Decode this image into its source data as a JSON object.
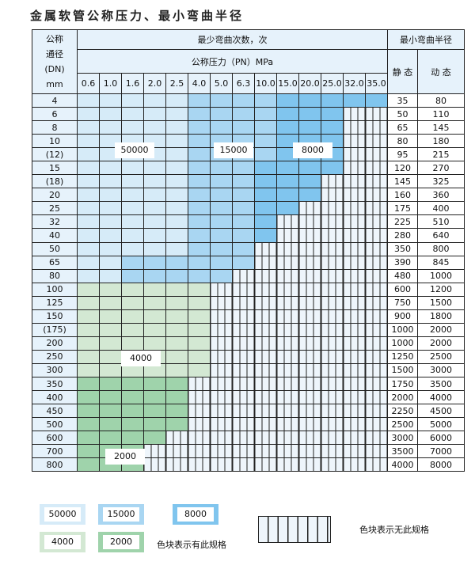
{
  "title": "金属软管公称压力、最小弯曲半径",
  "header": {
    "dn_label": [
      "公称",
      "通径",
      "(DN)",
      "mm"
    ],
    "cycles_label": "最少弯曲次数，次",
    "pressure_label": "公称压力（PN）MPa",
    "radius_label": "最小弯曲半径",
    "static_label": "静 态",
    "dynamic_label": "动 态"
  },
  "pressures": [
    "0.6",
    "1.0",
    "1.6",
    "2.0",
    "2.5",
    "4.0",
    "5.0",
    "6.3",
    "10.0",
    "15.0",
    "20.0",
    "25.0",
    "32.0",
    "35.0"
  ],
  "colors": {
    "A": "#d6ebf8",
    "B": "#a9d6f2",
    "C": "#80c5ee",
    "D": "#d3e8d3",
    "E": "#9fd3ab",
    "N": "#eef5fb"
  },
  "rows": [
    {
      "dn": "4",
      "s": "35",
      "d": "80",
      "cells": "AAAAABBBBCCCCC"
    },
    {
      "dn": "6",
      "s": "50",
      "d": "110",
      "cells": "AAAAABBBBCCCNN"
    },
    {
      "dn": "8",
      "s": "65",
      "d": "145",
      "cells": "AAAAABBBBCCCNN"
    },
    {
      "dn": "10",
      "s": "80",
      "d": "180",
      "cells": "AAAAABBBBCCCNN"
    },
    {
      "dn": "(12)",
      "s": "95",
      "d": "215",
      "cells": "AAAAABBBBCCCNN"
    },
    {
      "dn": "15",
      "s": "120",
      "d": "270",
      "cells": "AAAAABBBCCCCNN"
    },
    {
      "dn": "(18)",
      "s": "145",
      "d": "325",
      "cells": "AAAAABBBCCCNNN"
    },
    {
      "dn": "20",
      "s": "160",
      "d": "360",
      "cells": "AAAAABBBCCCNNN"
    },
    {
      "dn": "25",
      "s": "175",
      "d": "400",
      "cells": "AAAAABBBCCNNNN"
    },
    {
      "dn": "32",
      "s": "225",
      "d": "510",
      "cells": "AAAAABBBCNNNNN"
    },
    {
      "dn": "40",
      "s": "280",
      "d": "640",
      "cells": "AAAAABBBCNNNNN"
    },
    {
      "dn": "50",
      "s": "350",
      "d": "800",
      "cells": "AAAAABBBNNNNNN"
    },
    {
      "dn": "65",
      "s": "390",
      "d": "845",
      "cells": "AABBBBBBNNNNNN"
    },
    {
      "dn": "80",
      "s": "480",
      "d": "1000",
      "cells": "AABBBBBNNNNNNN"
    },
    {
      "dn": "100",
      "s": "600",
      "d": "1200",
      "cells": "DDDDDDNNNNNNNN"
    },
    {
      "dn": "125",
      "s": "750",
      "d": "1500",
      "cells": "DDDDDDNNNNNNNN"
    },
    {
      "dn": "150",
      "s": "900",
      "d": "1800",
      "cells": "DDDDDDNNNNNNNN"
    },
    {
      "dn": "(175)",
      "s": "1000",
      "d": "2000",
      "cells": "DDDDDDNNNNNNNN"
    },
    {
      "dn": "200",
      "s": "1000",
      "d": "2000",
      "cells": "DDDDDDNNNNNNNN"
    },
    {
      "dn": "250",
      "s": "1250",
      "d": "2500",
      "cells": "DDDDDDNNNNNNNN"
    },
    {
      "dn": "300",
      "s": "1500",
      "d": "3000",
      "cells": "DDDDDDNNNNNNNN"
    },
    {
      "dn": "350",
      "s": "1750",
      "d": "3500",
      "cells": "EEEEENNNNNNNNN"
    },
    {
      "dn": "400",
      "s": "2000",
      "d": "4000",
      "cells": "EEEEENNNNNNNNN"
    },
    {
      "dn": "450",
      "s": "2250",
      "d": "4500",
      "cells": "EEEEENNNNNNNNN"
    },
    {
      "dn": "500",
      "s": "2500",
      "d": "5000",
      "cells": "EEEEENNNNNNNNN"
    },
    {
      "dn": "600",
      "s": "3000",
      "d": "6000",
      "cells": "EEEENNNNNNNNNN"
    },
    {
      "dn": "700",
      "s": "3500",
      "d": "7000",
      "cells": "EEENNNNNNNNNNN"
    },
    {
      "dn": "800",
      "s": "4000",
      "d": "8000",
      "cells": "EEENNNNNNNNNNN"
    }
  ],
  "region_labels": {
    "A": "50000",
    "B": "15000",
    "C": "8000",
    "D": "4000",
    "E": "2000"
  },
  "legend": {
    "items": [
      {
        "key": "A",
        "label": "50000"
      },
      {
        "key": "B",
        "label": "15000"
      },
      {
        "key": "C",
        "label": "8000"
      },
      {
        "key": "D",
        "label": "4000"
      },
      {
        "key": "E",
        "label": "2000"
      }
    ],
    "has_spec": "色块表示有此规格",
    "no_spec": "色块表示无此规格"
  }
}
